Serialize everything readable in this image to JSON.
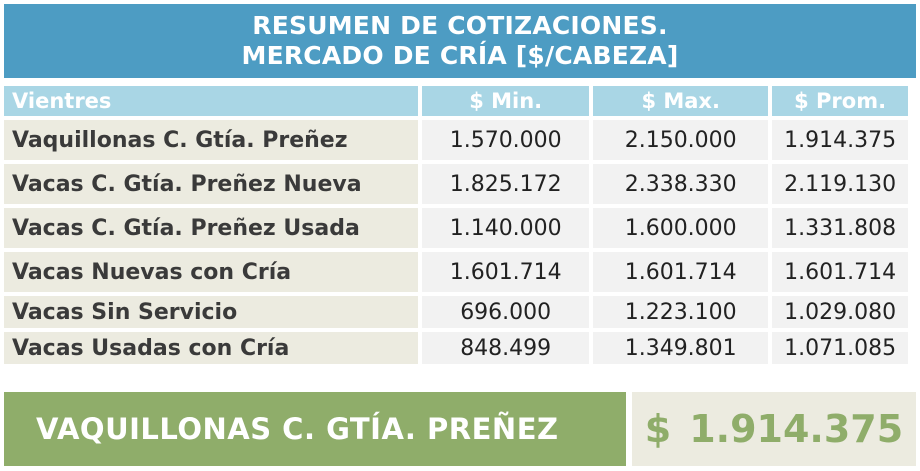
{
  "title": {
    "line1": "RESUMEN DE COTIZACIONES.",
    "line2": "MERCADO DE CRÍA [$/CABEZA]"
  },
  "table": {
    "headers": [
      "Vientres",
      "$ Min.",
      "$ Max.",
      "$ Prom."
    ],
    "rows": [
      {
        "label": "Vaquillonas C. Gtía. Preñez",
        "min": "1.570.000",
        "max": "2.150.000",
        "prom": "1.914.375"
      },
      {
        "label": "Vacas C. Gtía. Preñez Nueva",
        "min": "1.825.172",
        "max": "2.338.330",
        "prom": "2.119.130"
      },
      {
        "label": "Vacas C. Gtía. Preñez Usada",
        "min": "1.140.000",
        "max": "1.600.000",
        "prom": "1.331.808"
      },
      {
        "label": "Vacas Nuevas con Cría",
        "min": "1.601.714",
        "max": "1.601.714",
        "prom": "1.601.714"
      },
      {
        "label": "Vacas Sin Servicio",
        "min": "696.000",
        "max": "1.223.100",
        "prom": "1.029.080"
      },
      {
        "label": "Vacas Usadas con Cría",
        "min": "848.499",
        "max": "1.349.801",
        "prom": "1.071.085"
      }
    ]
  },
  "highlight": {
    "label": "VAQUILLONAS C. GTÍA. PREÑEZ",
    "currency": "$",
    "value": "1.914.375"
  },
  "colors": {
    "title_bg": "#4d9cc3",
    "header_bg": "#a9d6e5",
    "label_bg": "#ecebe0",
    "value_bg": "#f2f2f2",
    "accent_green": "#8fad6a"
  }
}
